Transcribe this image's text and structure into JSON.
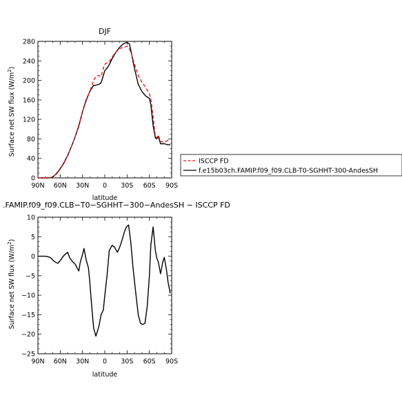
{
  "chart_data": [
    {
      "type": "line",
      "title": "DJF",
      "xlabel": "latitude",
      "ylabel": "Surface net SW flux (W/m²)",
      "xlim": [
        -90,
        90
      ],
      "ylim": [
        0,
        280
      ],
      "xticks": [
        -90,
        -60,
        -30,
        0,
        30,
        60,
        90
      ],
      "xtick_labels": [
        "90N",
        "60N",
        "30N",
        "0",
        "30S",
        "60S",
        "90S"
      ],
      "yticks": [
        0,
        40,
        80,
        120,
        160,
        200,
        240,
        280
      ],
      "ytick_labels": [
        "0",
        "40",
        "80",
        "120",
        "160",
        "200",
        "240",
        "280"
      ],
      "legend": "right",
      "series": [
        {
          "name": "ISCCP FD",
          "color": "#e41a1c",
          "dash": true,
          "x": [
            -90,
            -80,
            -75,
            -70,
            -65,
            -60,
            -55,
            -50,
            -45,
            -40,
            -35,
            -30,
            -25,
            -20,
            -15,
            -12,
            -8,
            -5,
            -2,
            0,
            3,
            6,
            10,
            15,
            20,
            25,
            28,
            30,
            33,
            35,
            40,
            45,
            50,
            55,
            60,
            62,
            65,
            68,
            70,
            72,
            75,
            80,
            85,
            88
          ],
          "y": [
            0,
            0,
            0,
            2,
            8,
            18,
            30,
            45,
            64,
            84,
            108,
            136,
            158,
            178,
            200,
            208,
            210,
            208,
            225,
            233,
            236,
            238,
            248,
            258,
            265,
            268,
            269,
            270,
            265,
            258,
            233,
            210,
            196,
            186,
            172,
            162,
            125,
            85,
            82,
            88,
            75,
            73,
            77,
            77
          ]
        },
        {
          "name": "f.e15b03ch.FAMIP.f09_f09.CLB-T0-SGHHT-300-AndesSH",
          "color": "#000000",
          "dash": false,
          "x": [
            -90,
            -80,
            -75,
            -70,
            -65,
            -60,
            -55,
            -50,
            -45,
            -40,
            -35,
            -30,
            -25,
            -20,
            -15,
            -12,
            -8,
            -5,
            -2,
            0,
            3,
            6,
            10,
            15,
            20,
            25,
            28,
            30,
            33,
            35,
            40,
            45,
            50,
            55,
            60,
            62,
            65,
            68,
            70,
            72,
            75,
            80,
            85,
            88
          ],
          "y": [
            0,
            0,
            0,
            2,
            9,
            19,
            31,
            46,
            64,
            84,
            106,
            136,
            160,
            178,
            190,
            190,
            192,
            195,
            210,
            220,
            225,
            232,
            245,
            258,
            268,
            275,
            277,
            278,
            275,
            262,
            224,
            192,
            177,
            168,
            163,
            150,
            107,
            82,
            80,
            85,
            70,
            70,
            68,
            68
          ]
        }
      ]
    },
    {
      "type": "line",
      "title": ".FAMIP.f09_f09.CLB−T0−SGHHT−300−AndesSH − ISCCP FD",
      "xlabel": "latitude",
      "ylabel": "Surface net SW flux (W/m²)",
      "xlim": [
        -90,
        90
      ],
      "ylim": [
        -25,
        10
      ],
      "xticks": [
        -90,
        -60,
        -30,
        0,
        30,
        60,
        90
      ],
      "xtick_labels": [
        "90N",
        "60N",
        "30N",
        "0",
        "30S",
        "60S",
        "90S"
      ],
      "yticks": [
        -25,
        -20,
        -15,
        -10,
        -5,
        0,
        5,
        10
      ],
      "ytick_labels": [
        "−25",
        "−20",
        "−15",
        "−10",
        "−5",
        "0",
        "5",
        "10"
      ],
      "series": [
        {
          "color": "#000000",
          "x": [
            -90,
            -80,
            -75,
            -72,
            -70,
            -66,
            -63,
            -60,
            -55,
            -50,
            -47,
            -43,
            -40,
            -35,
            -33,
            -30,
            -28,
            -25,
            -22,
            -20,
            -18,
            -15,
            -12,
            -8,
            -5,
            -2,
            0,
            3,
            6,
            10,
            13,
            17,
            20,
            23,
            26,
            29,
            32,
            35,
            38,
            42,
            45,
            48,
            51,
            54,
            57,
            60,
            62,
            65,
            68,
            70,
            72,
            75,
            78,
            80,
            83,
            85,
            88
          ],
          "y": [
            0,
            0,
            -0.2,
            -0.5,
            -1.0,
            -1.6,
            -1.8,
            -1.1,
            0.2,
            1.0,
            -0.5,
            -1.5,
            -2.0,
            -3.8,
            -1.5,
            0.4,
            2.0,
            -1.0,
            -3.0,
            -7.0,
            -12.0,
            -18.5,
            -20.5,
            -18.0,
            -15.0,
            -13.8,
            -10.0,
            -5.0,
            1.5,
            2.8,
            2.3,
            1.0,
            2.3,
            4.0,
            6.0,
            7.5,
            8.0,
            3.5,
            -3.0,
            -10.0,
            -15.0,
            -17.2,
            -17.5,
            -17.2,
            -13.0,
            -5.0,
            3.0,
            7.5,
            1.5,
            -0.5,
            -1.5,
            -4.5,
            -1.5,
            -0.3,
            -3.5,
            -6.5,
            -9.5
          ]
        }
      ]
    }
  ]
}
